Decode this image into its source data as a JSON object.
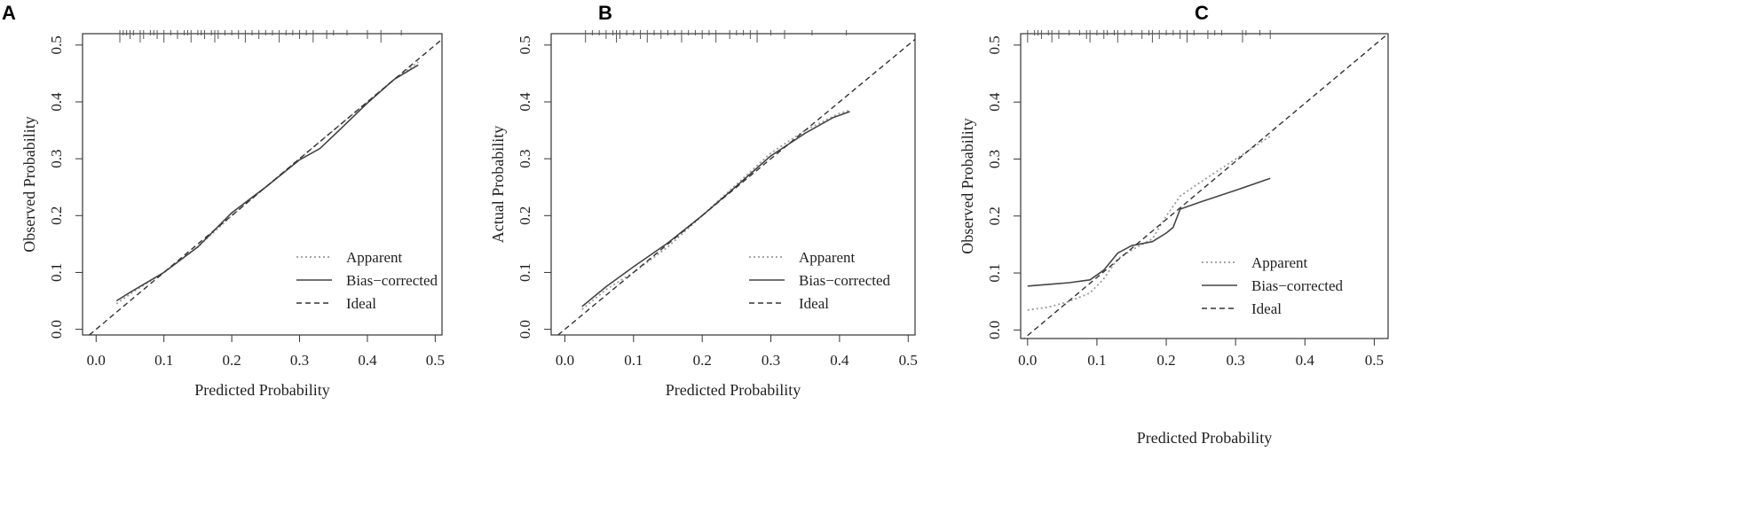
{
  "figure": {
    "panels": [
      {
        "id": "A",
        "chart_data": {
          "type": "line",
          "xlabel": "Predicted Probability",
          "ylabel": "Observed  Probability",
          "xlim": [
            -0.02,
            0.51
          ],
          "ylim": [
            -0.01,
            0.52
          ],
          "x_ticks": [
            0.0,
            0.1,
            0.2,
            0.3,
            0.4,
            0.5
          ],
          "y_ticks": [
            0.0,
            0.1,
            0.2,
            0.3,
            0.4,
            0.5
          ],
          "x_tick_labels": [
            "0.0",
            "0.1",
            "0.2",
            "0.3",
            "0.4",
            "0.5"
          ],
          "y_tick_labels": [
            "0.0",
            "0.1",
            "0.2",
            "0.3",
            "0.4",
            "0.5"
          ],
          "legend_position": "bottom-right",
          "series": [
            {
              "name": "Apparent",
              "style": "dotted",
              "color": "#9a9a9a",
              "x": [
                0.03,
                0.06,
                0.1,
                0.15,
                0.2,
                0.25,
                0.3,
                0.35,
                0.4,
                0.44,
                0.475
              ],
              "y": [
                0.045,
                0.07,
                0.1,
                0.145,
                0.2,
                0.25,
                0.3,
                0.35,
                0.4,
                0.44,
                0.47
              ]
            },
            {
              "name": "Bias−corrected",
              "style": "solid",
              "color": "#444444",
              "x": [
                0.03,
                0.05,
                0.1,
                0.15,
                0.2,
                0.25,
                0.3,
                0.33,
                0.36,
                0.4,
                0.44,
                0.475
              ],
              "y": [
                0.05,
                0.065,
                0.1,
                0.145,
                0.205,
                0.25,
                0.298,
                0.318,
                0.352,
                0.398,
                0.44,
                0.465
              ]
            },
            {
              "name": "Ideal",
              "style": "dashed",
              "color": "#333333",
              "x": [
                -0.02,
                0.51
              ],
              "y": [
                -0.02,
                0.51
              ]
            }
          ],
          "rug_x": [
            0.035,
            0.04,
            0.045,
            0.05,
            0.055,
            0.065,
            0.07,
            0.08,
            0.085,
            0.09,
            0.1,
            0.11,
            0.12,
            0.13,
            0.135,
            0.14,
            0.15,
            0.155,
            0.16,
            0.17,
            0.175,
            0.18,
            0.19,
            0.2,
            0.21,
            0.22,
            0.23,
            0.24,
            0.25,
            0.26,
            0.27,
            0.28,
            0.29,
            0.3,
            0.31,
            0.32,
            0.34,
            0.35,
            0.37,
            0.4,
            0.42,
            0.45
          ]
        }
      },
      {
        "id": "B",
        "chart_data": {
          "type": "line",
          "xlabel": "Predicted Probability",
          "ylabel": "Actual  Probability",
          "xlim": [
            -0.02,
            0.51
          ],
          "ylim": [
            -0.01,
            0.52
          ],
          "x_ticks": [
            0.0,
            0.1,
            0.2,
            0.3,
            0.4,
            0.5
          ],
          "y_ticks": [
            0.0,
            0.1,
            0.2,
            0.3,
            0.4,
            0.5
          ],
          "x_tick_labels": [
            "0.0",
            "0.1",
            "0.2",
            "0.3",
            "0.4",
            "0.5"
          ],
          "y_tick_labels": [
            "0.0",
            "0.1",
            "0.2",
            "0.3",
            "0.4",
            "0.5"
          ],
          "legend_position": "bottom-right",
          "series": [
            {
              "name": "Apparent",
              "style": "dotted",
              "color": "#9a9a9a",
              "x": [
                0.025,
                0.06,
                0.1,
                0.15,
                0.2,
                0.25,
                0.3,
                0.35,
                0.4,
                0.415
              ],
              "y": [
                0.035,
                0.07,
                0.1,
                0.145,
                0.2,
                0.255,
                0.31,
                0.35,
                0.38,
                0.385
              ]
            },
            {
              "name": "Bias−corrected",
              "style": "solid",
              "color": "#444444",
              "x": [
                0.025,
                0.06,
                0.1,
                0.15,
                0.2,
                0.25,
                0.3,
                0.35,
                0.39,
                0.415
              ],
              "y": [
                0.04,
                0.075,
                0.11,
                0.152,
                0.2,
                0.252,
                0.305,
                0.345,
                0.372,
                0.383
              ]
            },
            {
              "name": "Ideal",
              "style": "dashed",
              "color": "#333333",
              "x": [
                -0.02,
                0.51
              ],
              "y": [
                -0.02,
                0.51
              ]
            }
          ],
          "rug_x": [
            0.03,
            0.04,
            0.05,
            0.06,
            0.07,
            0.075,
            0.08,
            0.09,
            0.1,
            0.11,
            0.12,
            0.13,
            0.14,
            0.15,
            0.16,
            0.17,
            0.18,
            0.19,
            0.2,
            0.21,
            0.22,
            0.24,
            0.25,
            0.26,
            0.27,
            0.28,
            0.3,
            0.32,
            0.36,
            0.41
          ]
        }
      },
      {
        "id": "C",
        "chart_data": {
          "type": "line",
          "xlabel": "Predicted Probability",
          "ylabel": "Observed  Probability",
          "xlim": [
            -0.01,
            0.52
          ],
          "ylim": [
            -0.015,
            0.52
          ],
          "x_ticks": [
            0.0,
            0.1,
            0.2,
            0.3,
            0.4,
            0.5
          ],
          "y_ticks": [
            0.0,
            0.1,
            0.2,
            0.3,
            0.4,
            0.5
          ],
          "x_tick_labels": [
            "0.0",
            "0.1",
            "0.2",
            "0.3",
            "0.4",
            "0.5"
          ],
          "y_tick_labels": [
            "0.0",
            "0.1",
            "0.2",
            "0.3",
            "0.4",
            "0.5"
          ],
          "legend_position": "bottom-right",
          "series": [
            {
              "name": "Apparent",
              "style": "dotted",
              "color": "#9a9a9a",
              "x": [
                0.0,
                0.03,
                0.06,
                0.09,
                0.11,
                0.13,
                0.15,
                0.18,
                0.2,
                0.22,
                0.25,
                0.3,
                0.35
              ],
              "y": [
                0.035,
                0.04,
                0.05,
                0.065,
                0.09,
                0.125,
                0.14,
                0.16,
                0.2,
                0.235,
                0.26,
                0.3,
                0.34
              ]
            },
            {
              "name": "Bias−corrected",
              "style": "solid",
              "color": "#444444",
              "x": [
                0.0,
                0.03,
                0.06,
                0.09,
                0.11,
                0.13,
                0.15,
                0.18,
                0.2,
                0.21,
                0.22,
                0.25,
                0.3,
                0.35
              ],
              "y": [
                0.077,
                0.08,
                0.083,
                0.088,
                0.105,
                0.135,
                0.148,
                0.155,
                0.17,
                0.18,
                0.212,
                0.225,
                0.245,
                0.266
              ]
            },
            {
              "name": "Ideal",
              "style": "dashed",
              "color": "#333333",
              "x": [
                -0.01,
                0.52
              ],
              "y": [
                -0.02,
                0.52
              ]
            }
          ],
          "rug_x": [
            0.0,
            0.01,
            0.015,
            0.02,
            0.03,
            0.035,
            0.045,
            0.06,
            0.075,
            0.085,
            0.09,
            0.1,
            0.11,
            0.115,
            0.125,
            0.13,
            0.14,
            0.15,
            0.165,
            0.175,
            0.18,
            0.19,
            0.2,
            0.21,
            0.22,
            0.23,
            0.24,
            0.26,
            0.27,
            0.28,
            0.31,
            0.315,
            0.335,
            0.35
          ]
        }
      }
    ]
  }
}
